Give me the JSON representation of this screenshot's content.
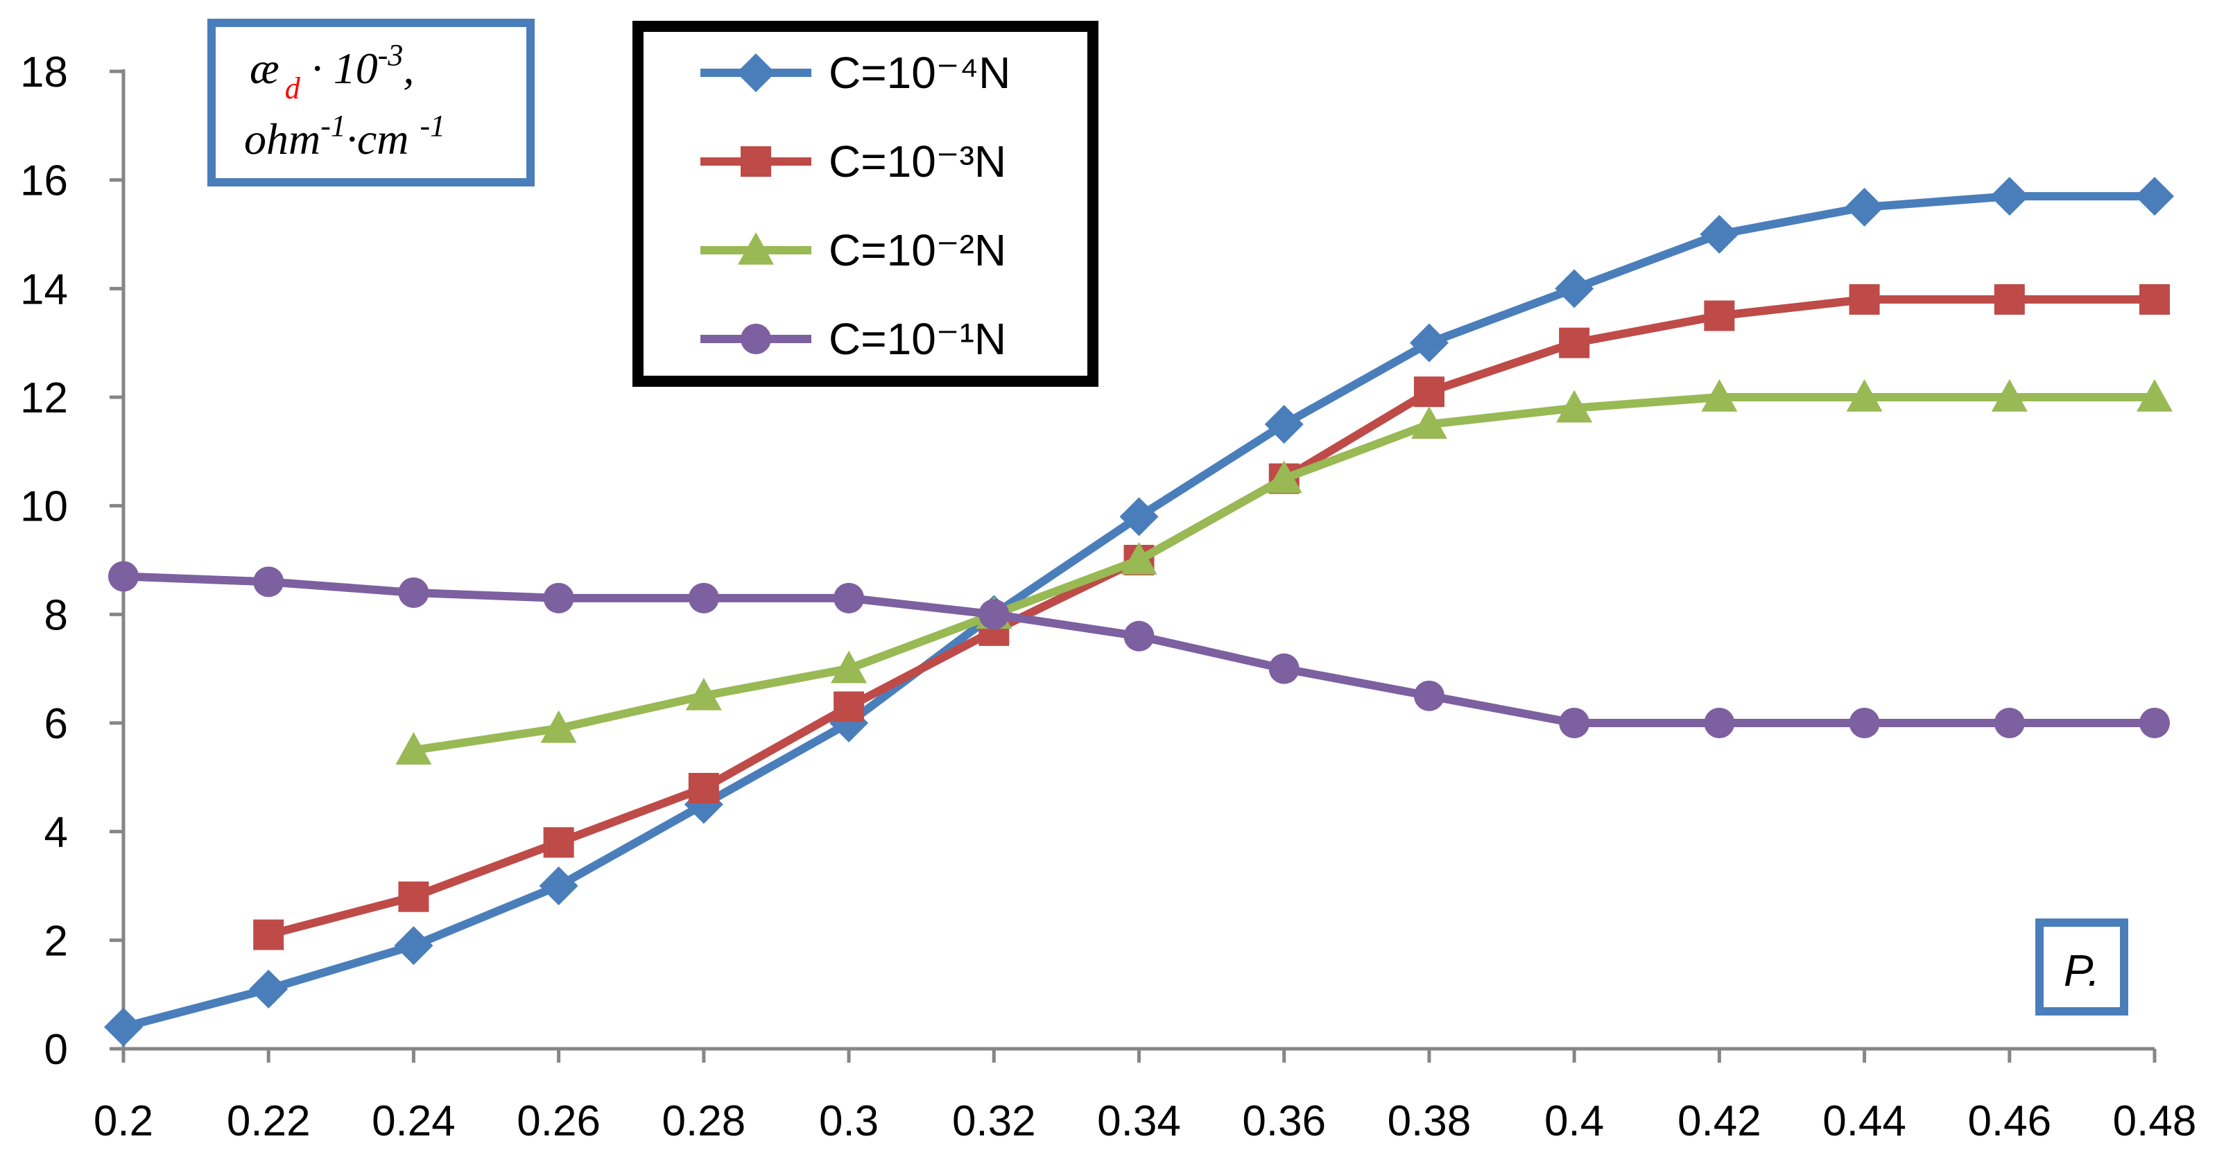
{
  "chart_data": {
    "type": "line",
    "title": "",
    "ylabel": {
      "line1_symbol": "æ",
      "line1_subscript": "d",
      "line1_rest": " · 10",
      "line1_exp": "-3",
      "line1_comma": ",",
      "line2_a": "ohm",
      "line2_exp1": "-1",
      "line2_b": "·cm ",
      "line2_exp2": "-1"
    },
    "xlabel": "P.",
    "ylim": [
      0,
      18
    ],
    "yticks": [
      0,
      2,
      4,
      6,
      8,
      10,
      12,
      14,
      16,
      18
    ],
    "xlim": [
      0.2,
      0.48
    ],
    "x": [
      0.2,
      0.22,
      0.24,
      0.26,
      0.28,
      0.3,
      0.32,
      0.34,
      0.36,
      0.38,
      0.4,
      0.42,
      0.44,
      0.46,
      0.48
    ],
    "xtick_labels": [
      "0.2",
      "0.22",
      "0.24",
      "0.26",
      "0.28",
      "0.3",
      "0.32",
      "0.34",
      "0.36",
      "0.38",
      "0.4",
      "0.42",
      "0.44",
      "0.46",
      "0.48"
    ],
    "series": [
      {
        "name": "C=10⁻⁴N",
        "color": "#4a7ebb",
        "marker": "diamond",
        "values": [
          0.4,
          1.1,
          1.9,
          3.0,
          4.5,
          6.0,
          8.0,
          9.8,
          11.5,
          13.0,
          14.0,
          15.0,
          15.5,
          15.7,
          15.7
        ]
      },
      {
        "name": "C=10⁻³N",
        "color": "#be4b48",
        "marker": "square",
        "values": [
          null,
          2.1,
          2.8,
          3.8,
          4.8,
          6.3,
          7.7,
          9.0,
          10.5,
          12.1,
          13.0,
          13.5,
          13.8,
          13.8,
          13.8
        ]
      },
      {
        "name": "C=10⁻²N",
        "color": "#98b954",
        "marker": "triangle",
        "values": [
          null,
          null,
          5.5,
          5.9,
          6.5,
          7.0,
          8.0,
          9.0,
          10.5,
          11.5,
          11.8,
          12.0,
          12.0,
          12.0,
          12.0
        ]
      },
      {
        "name": "C=10⁻¹N",
        "color": "#7d60a0",
        "marker": "circle",
        "values": [
          8.7,
          8.6,
          8.4,
          8.3,
          8.3,
          8.3,
          8.0,
          7.6,
          7.0,
          6.5,
          6.0,
          6.0,
          6.0,
          6.0,
          6.0
        ]
      }
    ],
    "legend_position": "top-center"
  },
  "colors": {
    "axis": "#868686",
    "legend_border": "#000000",
    "label_box_border": "#4a7ebb",
    "subscript_red": "#ff0000"
  }
}
